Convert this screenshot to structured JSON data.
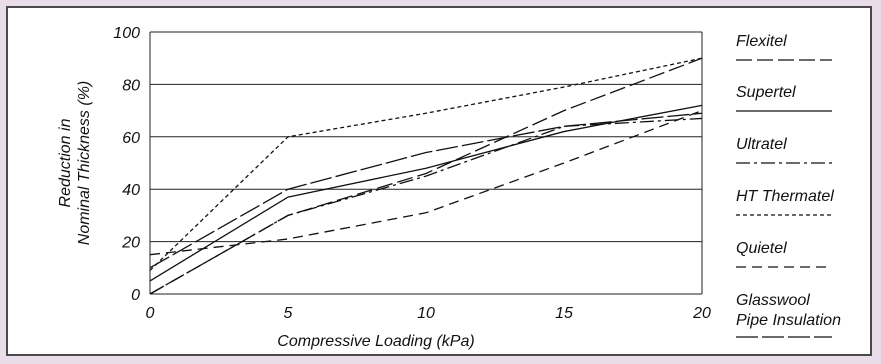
{
  "chart_data": {
    "type": "line",
    "title": "",
    "xlabel": "Compressive Loading (kPa)",
    "ylabel": [
      "Reduction in",
      "Nominal Thickness (%)"
    ],
    "xlim": [
      0,
      20
    ],
    "ylim": [
      0,
      100
    ],
    "x_ticks": [
      "0",
      "5",
      "10",
      "15",
      "20"
    ],
    "y_ticks": [
      "0",
      "20",
      "40",
      "60",
      "80",
      "100"
    ],
    "grid": "horizontal",
    "legend_position": "right",
    "series": [
      {
        "name": "Flexitel",
        "dash": "long-dash",
        "color": "#111111",
        "x": [
          0,
          5,
          10,
          15,
          20
        ],
        "y": [
          0,
          30,
          46,
          70,
          90
        ]
      },
      {
        "name": "Supertel",
        "dash": "solid",
        "color": "#111111",
        "x": [
          0,
          5,
          10,
          15,
          20
        ],
        "y": [
          5,
          37,
          48,
          62,
          72
        ]
      },
      {
        "name": "Ultratel",
        "dash": "dash-dot",
        "color": "#111111",
        "x": [
          0,
          5,
          10,
          15,
          20
        ],
        "y": [
          0,
          30,
          45,
          64,
          67
        ]
      },
      {
        "name": "HT Thermatel",
        "dash": "short-dash",
        "color": "#111111",
        "x": [
          0,
          5,
          10,
          15,
          20
        ],
        "y": [
          9,
          60,
          69,
          79,
          90
        ]
      },
      {
        "name": "Quietel",
        "dash": "medium-dash",
        "color": "#111111",
        "x": [
          0,
          5,
          10,
          15,
          20
        ],
        "y": [
          15,
          21,
          31,
          50,
          70
        ]
      },
      {
        "name": "Glasswool Pipe Insulation",
        "name_lines": [
          "Glasswool",
          "Pipe Insulation"
        ],
        "dash": "long-gap",
        "color": "#111111",
        "x": [
          0,
          5,
          10,
          15,
          20
        ],
        "y": [
          10,
          40,
          54,
          64,
          69
        ]
      }
    ]
  }
}
